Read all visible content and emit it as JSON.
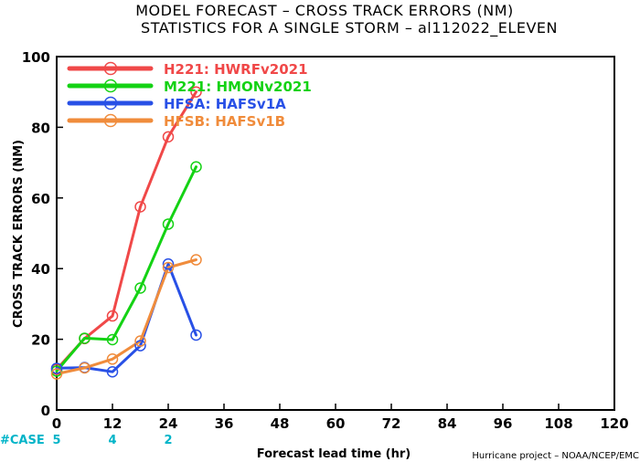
{
  "title_line1": "MODEL FORECAST – CROSS TRACK ERRORS (NM)",
  "title_line2": "STATISTICS FOR A SINGLE STORM – al112022_ELEVEN",
  "credit": "Hurricane project – NOAA/NCEP/EMC",
  "case_label": "#CASE",
  "chart_data": {
    "type": "line",
    "title": "MODEL FORECAST – CROSS TRACK ERRORS (NM)",
    "subtitle": "STATISTICS FOR A SINGLE STORM – al112022_ELEVEN",
    "xlabel": "Forecast lead time (hr)",
    "ylabel": "CROSS TRACK ERRORS (NM)",
    "xlim": [
      0,
      120
    ],
    "ylim": [
      0,
      100
    ],
    "xticks": [
      0,
      12,
      24,
      36,
      48,
      60,
      72,
      84,
      96,
      108,
      120
    ],
    "yticks": [
      0,
      20,
      40,
      60,
      80,
      100
    ],
    "grid": false,
    "legend_position": "top-left",
    "case_counts": [
      {
        "x": 0,
        "label": "5"
      },
      {
        "x": 12,
        "label": "4"
      },
      {
        "x": 24,
        "label": "2"
      }
    ],
    "series": [
      {
        "name": "H221: HWRFv2021",
        "color": "#f04848",
        "x": [
          0,
          6,
          12,
          18,
          24,
          30
        ],
        "values": [
          11.5,
          20.2,
          26.6,
          57.5,
          77.3,
          90.0
        ]
      },
      {
        "name": "M221: HMONv2021",
        "color": "#14d214",
        "x": [
          0,
          6,
          12,
          18,
          24,
          30
        ],
        "values": [
          11.0,
          20.3,
          19.9,
          34.5,
          52.6,
          68.8
        ]
      },
      {
        "name": "HFSA: HAFSv1A",
        "color": "#2850e6",
        "x": [
          0,
          6,
          12,
          18,
          24,
          30
        ],
        "values": [
          11.8,
          12.0,
          10.8,
          18.2,
          41.3,
          21.2
        ]
      },
      {
        "name": "HFSB: HAFSv1B",
        "color": "#f08c3c",
        "x": [
          0,
          6,
          12,
          18,
          24,
          30
        ],
        "values": [
          10.2,
          11.9,
          14.4,
          19.5,
          40.3,
          42.5
        ]
      }
    ]
  }
}
